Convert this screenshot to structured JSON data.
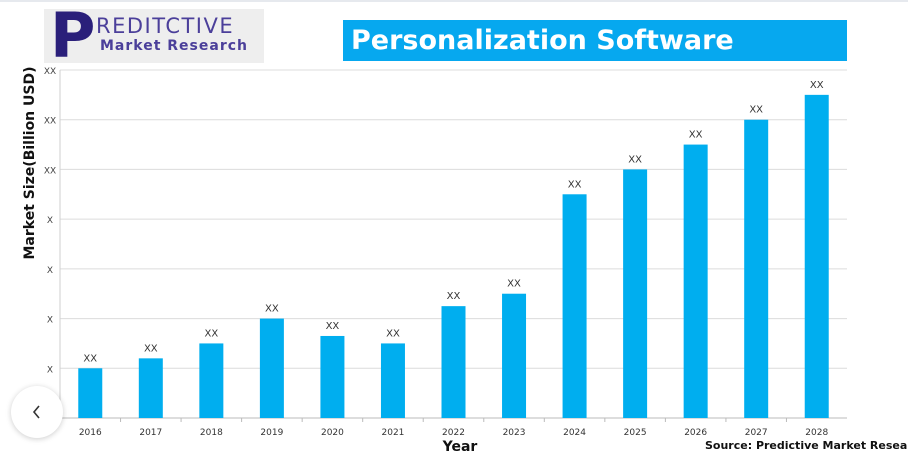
{
  "logo": {
    "letter": "P",
    "line1": "REDITCTIVE",
    "line2": "Market Research"
  },
  "chart_data": {
    "type": "bar",
    "title": "Personalization Software",
    "xlabel": "Year",
    "ylabel": "Market Size(Billion USD)",
    "categories": [
      "2016",
      "2017",
      "2018",
      "2019",
      "2020",
      "2021",
      "2022",
      "2023",
      "2024",
      "2025",
      "2026",
      "2027",
      "2028"
    ],
    "values": [
      1,
      1.2,
      1.5,
      2,
      1.65,
      1.5,
      2.25,
      2.5,
      4.5,
      5,
      5.5,
      6,
      6.5
    ],
    "data_labels": [
      "XX",
      "XX",
      "XX",
      "XX",
      "XX",
      "XX",
      "XX",
      "XX",
      "XX",
      "XX",
      "XX",
      "XX",
      "XX"
    ],
    "ytick_labels": [
      "X",
      "X",
      "X",
      "X",
      "XX",
      "XX",
      "XX"
    ],
    "ylim": [
      0,
      7
    ],
    "grid": true,
    "bar_color": "#00aeef",
    "source": "Source: Predictive Market Research"
  },
  "nav": {
    "back_icon": "chevron-left-icon"
  }
}
